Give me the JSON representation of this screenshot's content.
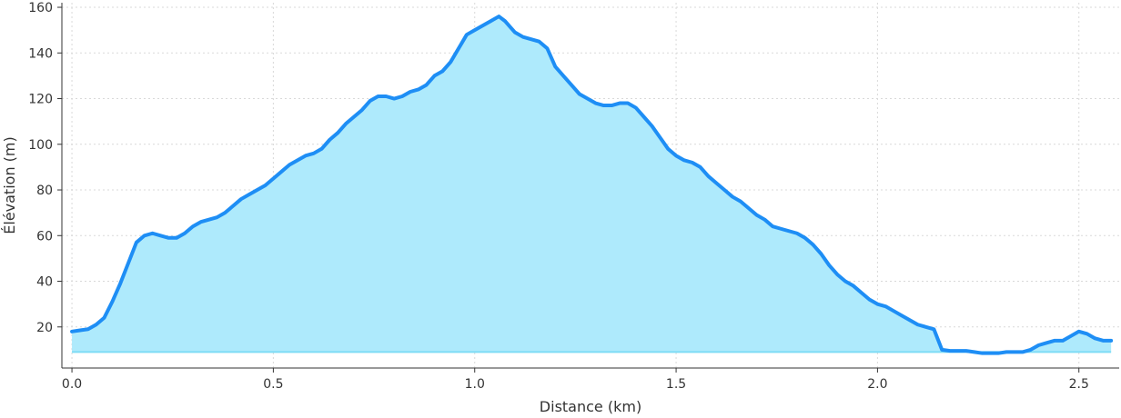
{
  "chart_data": {
    "type": "area",
    "title": "",
    "xlabel": "Distance (km)",
    "ylabel": "Élévation (m)",
    "xlim": [
      -0.025,
      2.6
    ],
    "ylim": [
      2,
      162
    ],
    "xticks": [
      0.0,
      0.5,
      1.0,
      1.5,
      2.0,
      2.5
    ],
    "xtick_labels": [
      "0.0",
      "0.5",
      "1.0",
      "1.5",
      "2.0",
      "2.5"
    ],
    "yticks": [
      20,
      40,
      60,
      80,
      100,
      120,
      140,
      160
    ],
    "ytick_labels": [
      "20",
      "40",
      "60",
      "80",
      "100",
      "120",
      "140",
      "160"
    ],
    "area_baseline": 9,
    "grid": true,
    "legend": "none",
    "colors": {
      "line": "#1e8ef5",
      "fill": "#aeeafc",
      "fill_edge": "#7fdcf5"
    },
    "series": [
      {
        "x": [
          0.0,
          0.02,
          0.04,
          0.06,
          0.08,
          0.1,
          0.12,
          0.14,
          0.16,
          0.18,
          0.2,
          0.22,
          0.24,
          0.26,
          0.28,
          0.3,
          0.32,
          0.34,
          0.36,
          0.38,
          0.4,
          0.42,
          0.44,
          0.46,
          0.48,
          0.5,
          0.52,
          0.54,
          0.56,
          0.58,
          0.6,
          0.62,
          0.64,
          0.66,
          0.68,
          0.7,
          0.72,
          0.74,
          0.76,
          0.78,
          0.8,
          0.82,
          0.84,
          0.86,
          0.88,
          0.9,
          0.92,
          0.94,
          0.96,
          0.98,
          1.0,
          1.02,
          1.04,
          1.06,
          1.075,
          1.09,
          1.1,
          1.12,
          1.14,
          1.16,
          1.18,
          1.2,
          1.22,
          1.24,
          1.26,
          1.28,
          1.3,
          1.32,
          1.34,
          1.36,
          1.38,
          1.4,
          1.42,
          1.44,
          1.46,
          1.48,
          1.5,
          1.52,
          1.54,
          1.56,
          1.58,
          1.6,
          1.62,
          1.64,
          1.66,
          1.68,
          1.7,
          1.72,
          1.74,
          1.76,
          1.78,
          1.8,
          1.82,
          1.84,
          1.86,
          1.88,
          1.9,
          1.92,
          1.94,
          1.96,
          1.98,
          2.0,
          2.02,
          2.04,
          2.06,
          2.08,
          2.1,
          2.12,
          2.14,
          2.16,
          2.18,
          2.2,
          2.22,
          2.24,
          2.26,
          2.28,
          2.3,
          2.32,
          2.34,
          2.36,
          2.38,
          2.4,
          2.42,
          2.44,
          2.46,
          2.48,
          2.5,
          2.52,
          2.54,
          2.56,
          2.58
        ],
        "y": [
          18,
          18.5,
          19,
          21,
          24,
          31,
          39,
          48,
          57,
          60,
          61,
          60,
          59,
          59,
          61,
          64,
          66,
          67,
          68,
          70,
          73,
          76,
          78,
          80,
          82,
          85,
          88,
          91,
          93,
          95,
          96,
          98,
          102,
          105,
          109,
          112,
          115,
          119,
          121,
          121,
          120,
          121,
          123,
          124,
          126,
          130,
          132,
          136,
          142,
          148,
          150,
          152,
          154,
          156,
          154,
          151,
          149,
          147,
          146,
          145,
          142,
          134,
          130,
          126,
          122,
          120,
          118,
          117,
          117,
          118,
          118,
          116,
          112,
          108,
          103,
          98,
          95,
          93,
          92,
          90,
          86,
          83,
          80,
          77,
          75,
          72,
          69,
          67,
          64,
          63,
          62,
          61,
          59,
          56,
          52,
          47,
          43,
          40,
          38,
          35,
          32,
          30,
          29,
          27,
          25,
          23,
          21,
          20,
          19,
          10,
          9.5,
          9.5,
          9.5,
          9,
          8.5,
          8.5,
          8.5,
          9,
          9,
          9,
          10,
          12,
          13,
          14,
          14,
          16,
          18,
          17,
          15,
          14,
          14
        ]
      }
    ]
  }
}
